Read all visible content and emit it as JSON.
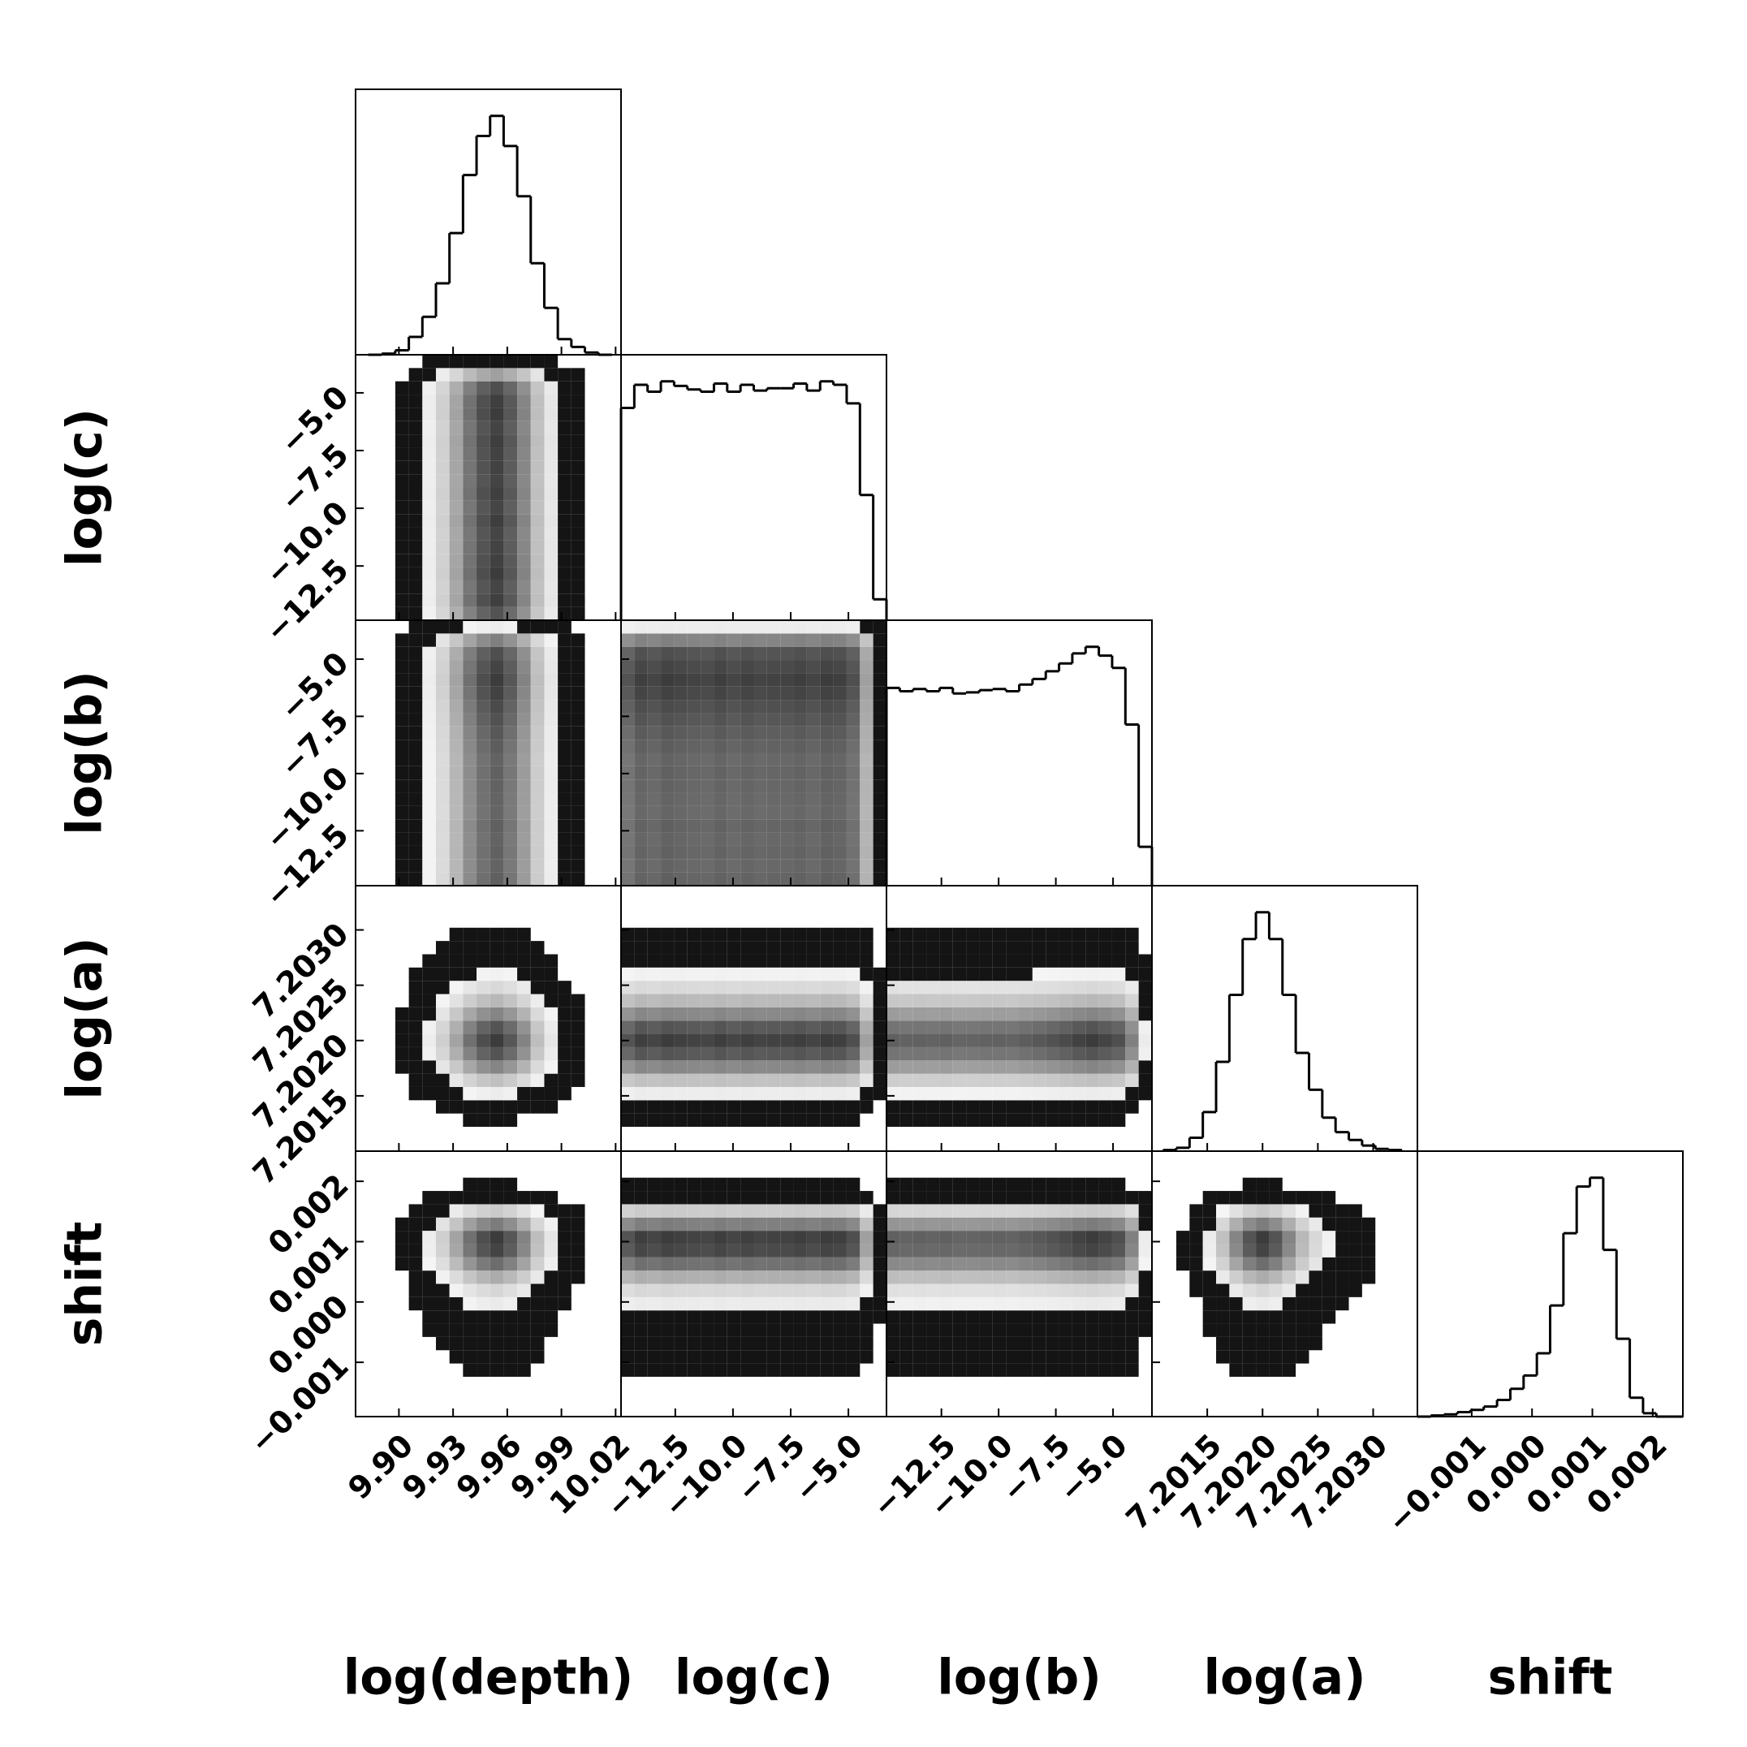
{
  "chart_data": {
    "type": "corner",
    "color": "#000000",
    "parameters": [
      {
        "label": "log(depth)",
        "lim": [
          9.876,
          10.023
        ],
        "ticks": [
          {
            "value": 9.9,
            "label": "9.90"
          },
          9.93,
          9.96,
          9.99,
          10.02
        ],
        "bins": [
          9.883,
          9.8905,
          9.898,
          9.9055,
          9.913,
          9.9205,
          9.928,
          9.9355,
          9.943,
          9.9505,
          9.958,
          9.9655,
          9.973,
          9.9805,
          9.988,
          9.9955,
          10.003,
          10.0105,
          10.018
        ],
        "counts": [
          0,
          1,
          4,
          16,
          34,
          64,
          109,
          161,
          196,
          214,
          187,
          142,
          82,
          42,
          14,
          7,
          2,
          0
        ]
      },
      {
        "label": "log(c)",
        "lim": [
          -14.85,
          -3.35
        ],
        "ticks": [
          {
            "value": -12.5,
            "label": "−12.5"
          },
          {
            "value": -10,
            "label": "−10.0"
          },
          {
            "value": -7.5,
            "label": "−7.5"
          },
          {
            "value": -5,
            "label": "−5.0"
          }
        ],
        "bins": [
          -14.85,
          -14.275,
          -13.7,
          -13.125,
          -12.55,
          -11.975,
          -11.4,
          -10.825,
          -10.25,
          -9.675,
          -9.1,
          -8.525,
          -7.95,
          -7.375,
          -6.8,
          -6.225,
          -5.65,
          -5.075,
          -4.5,
          -3.925,
          -3.35
        ],
        "counts": [
          183,
          203,
          197,
          206,
          202,
          199,
          197,
          204,
          197,
          203,
          198,
          200,
          200,
          204,
          198,
          206,
          203,
          187,
          108,
          18
        ]
      },
      {
        "label": "log(b)",
        "lim": [
          -14.9,
          -3.3
        ],
        "ticks": [
          {
            "value": -12.5,
            "label": "−12.5"
          },
          {
            "value": -10,
            "label": "−10.0"
          },
          {
            "value": -7.5,
            "label": "−7.5"
          },
          {
            "value": -5,
            "label": "−5.0"
          }
        ],
        "bins": [
          -14.9,
          -14.32,
          -13.74,
          -13.16,
          -12.58,
          -12.0,
          -11.42,
          -10.84,
          -10.26,
          -9.68,
          -9.1,
          -8.52,
          -7.94,
          -7.36,
          -6.78,
          -6.2,
          -5.62,
          -5.04,
          -4.46,
          -3.88,
          -3.3
        ],
        "counts": [
          178,
          175,
          177,
          175,
          178,
          173,
          174,
          176,
          177,
          175,
          181,
          186,
          193,
          200,
          209,
          215,
          207,
          196,
          145,
          35
        ]
      },
      {
        "label": "log(a)",
        "lim": [
          7.201,
          7.2034
        ],
        "ticks": [
          7.2015,
          {
            "value": 7.202,
            "label": "7.2020"
          },
          7.2025,
          {
            "value": 7.203,
            "label": "7.2030"
          }
        ],
        "bins": [
          7.2011,
          7.20122,
          7.20134,
          7.20146,
          7.20158,
          7.2017,
          7.20182,
          7.20194,
          7.20206,
          7.20218,
          7.2023,
          7.20242,
          7.20254,
          7.20266,
          7.20278,
          7.2029,
          7.20302,
          7.20314,
          7.20326
        ],
        "counts": [
          1,
          3,
          12,
          35,
          80,
          140,
          190,
          214,
          190,
          140,
          88,
          55,
          30,
          17,
          10,
          5,
          2,
          1
        ]
      },
      {
        "label": "shift",
        "lim": [
          -0.0019,
          0.0025
        ],
        "ticks": [
          {
            "value": -0.001,
            "label": "−0.001"
          },
          {
            "value": 0,
            "label": "0.000"
          },
          0.001,
          0.002
        ],
        "bins": [
          -0.0019,
          -0.00168,
          -0.00146,
          -0.00124,
          -0.00102,
          -0.0008,
          -0.00058,
          -0.00036,
          -0.00014,
          8e-05,
          0.0003,
          0.00052,
          0.00074,
          0.00096,
          0.00118,
          0.0014,
          0.00162,
          0.00184,
          0.00206,
          0.00228,
          0.0025
        ],
        "counts": [
          0,
          1,
          2,
          4,
          6,
          9,
          15,
          25,
          37,
          57,
          100,
          165,
          207,
          215,
          150,
          70,
          17,
          3,
          0,
          0
        ]
      }
    ]
  }
}
